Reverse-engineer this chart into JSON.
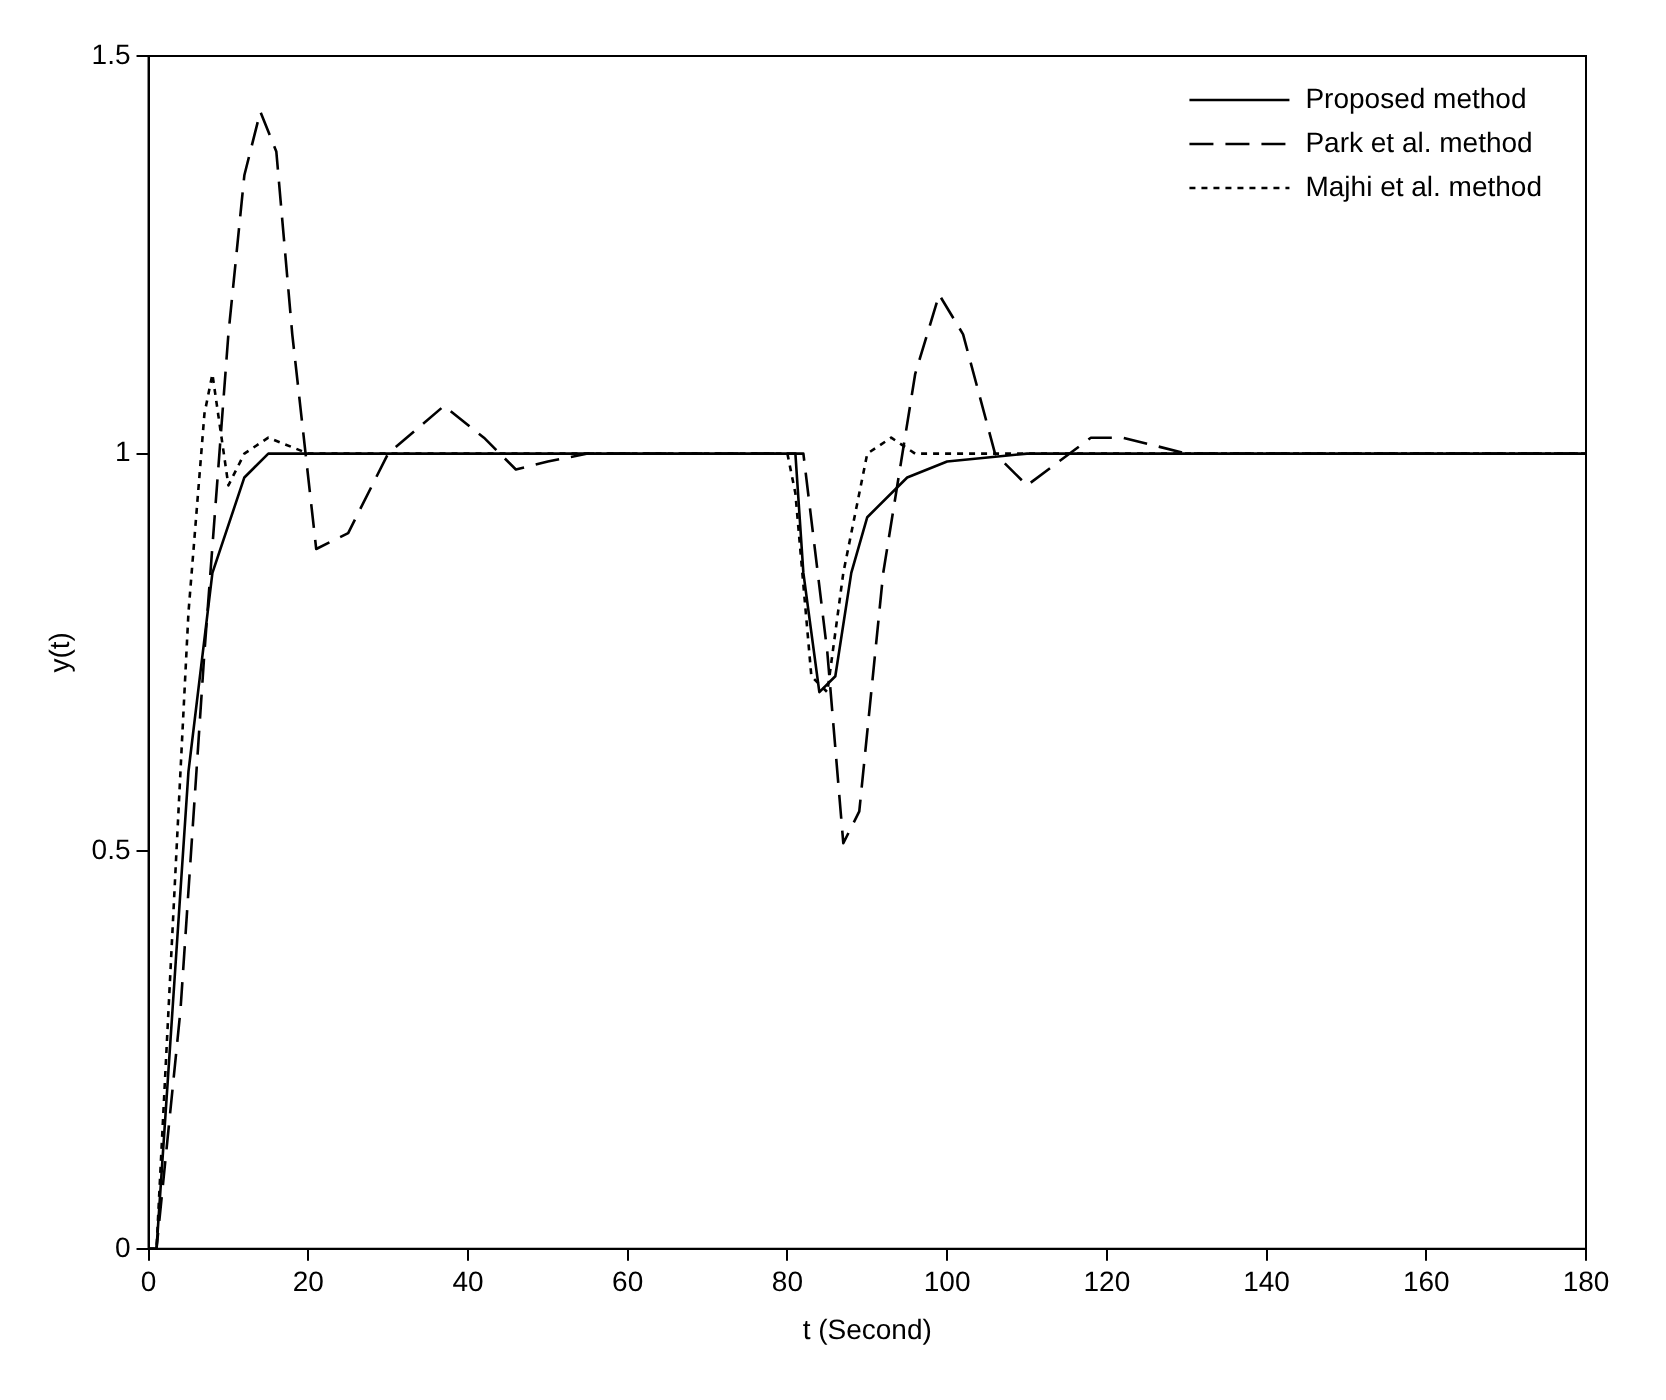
{
  "chart_data": {
    "type": "line",
    "xlabel": "t (Second)",
    "ylabel": "y(t)",
    "xlim": [
      0,
      180
    ],
    "ylim": [
      0,
      1.5
    ],
    "xticks": [
      0,
      20,
      40,
      60,
      80,
      100,
      120,
      140,
      160,
      180
    ],
    "yticks": [
      0,
      0.5,
      1,
      1.5
    ],
    "grid": false,
    "legend": "top right",
    "marker": "none",
    "series": [
      {
        "name": "Proposed method",
        "color": "#000000",
        "line_style": "solid",
        "x": [
          0,
          1,
          3,
          5,
          8,
          12,
          15,
          20,
          40,
          60,
          80,
          81,
          82,
          84,
          86,
          88,
          90,
          95,
          100,
          110,
          120,
          140,
          160,
          180
        ],
        "values": [
          0,
          0,
          0.3,
          0.6,
          0.85,
          0.97,
          1.0,
          1.0,
          1.0,
          1.0,
          1.0,
          1.0,
          0.85,
          0.7,
          0.72,
          0.85,
          0.92,
          0.97,
          0.99,
          1.0,
          1.0,
          1.0,
          1.0,
          1.0
        ]
      },
      {
        "name": "Park et al. method",
        "color": "#000000",
        "line_style": "dashed",
        "x": [
          0,
          1,
          4,
          7,
          10,
          12,
          14,
          16,
          18,
          21,
          25,
          30,
          37,
          42,
          46,
          50,
          55,
          60,
          80,
          82,
          85,
          87,
          89,
          92,
          96,
          99,
          102,
          106,
          110,
          114,
          118,
          122,
          130,
          140,
          180
        ],
        "values": [
          0,
          0,
          0.3,
          0.75,
          1.15,
          1.35,
          1.43,
          1.38,
          1.15,
          0.88,
          0.9,
          1.0,
          1.06,
          1.02,
          0.98,
          0.99,
          1.0,
          1.0,
          1.0,
          1.0,
          0.75,
          0.51,
          0.55,
          0.85,
          1.1,
          1.2,
          1.15,
          1.0,
          0.96,
          0.99,
          1.02,
          1.02,
          1.0,
          1.0,
          1.0
        ]
      },
      {
        "name": "Majhi et al. method",
        "color": "#000000",
        "line_style": "dotted",
        "x": [
          0,
          1,
          3,
          5,
          7,
          8,
          10,
          12,
          15,
          20,
          40,
          80,
          81,
          83,
          85,
          87,
          90,
          93,
          96,
          100,
          120,
          180
        ],
        "values": [
          0,
          0,
          0.4,
          0.8,
          1.05,
          1.1,
          0.96,
          1.0,
          1.02,
          1.0,
          1.0,
          1.0,
          0.95,
          0.72,
          0.7,
          0.85,
          1.0,
          1.02,
          1.0,
          1.0,
          1.0,
          1.0
        ]
      }
    ]
  }
}
